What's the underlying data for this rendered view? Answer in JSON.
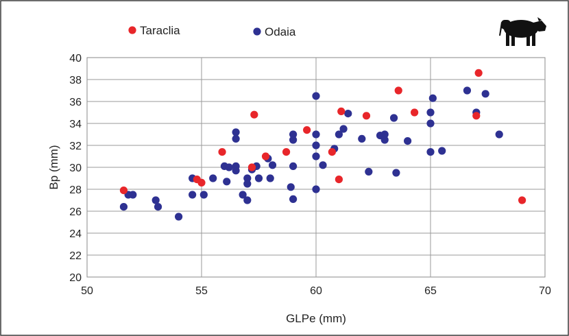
{
  "chart_data": {
    "type": "scatter",
    "xlabel": "GLPe (mm)",
    "ylabel": "Bp (mm)",
    "xlim": [
      50,
      70
    ],
    "ylim": [
      20,
      40
    ],
    "x_ticks": [
      "50",
      "55",
      "60",
      "65",
      "70"
    ],
    "y_ticks": [
      "20",
      "22",
      "24",
      "26",
      "28",
      "30",
      "32",
      "34",
      "36",
      "38",
      "40"
    ],
    "grid": true,
    "legend_position": "top-left",
    "icon": "cow-silhouette-icon",
    "series": [
      {
        "name": "Taraclia",
        "color": "#e8262a",
        "points": [
          [
            51.6,
            27.9
          ],
          [
            54.8,
            28.9
          ],
          [
            55.0,
            28.6
          ],
          [
            55.9,
            31.4
          ],
          [
            57.2,
            30.0
          ],
          [
            57.3,
            34.8
          ],
          [
            57.8,
            31.0
          ],
          [
            58.7,
            31.4
          ],
          [
            59.6,
            33.4
          ],
          [
            60.7,
            31.4
          ],
          [
            61.0,
            28.9
          ],
          [
            61.1,
            35.1
          ],
          [
            62.2,
            34.7
          ],
          [
            63.6,
            37.0
          ],
          [
            64.3,
            35.0
          ],
          [
            67.0,
            34.7
          ],
          [
            67.1,
            38.6
          ],
          [
            69.0,
            27.0
          ]
        ]
      },
      {
        "name": "Odaia",
        "color": "#2e3192",
        "points": [
          [
            51.6,
            26.4
          ],
          [
            51.8,
            27.5
          ],
          [
            52.0,
            27.5
          ],
          [
            53.0,
            27.0
          ],
          [
            53.1,
            26.4
          ],
          [
            54.0,
            25.5
          ],
          [
            54.6,
            29.0
          ],
          [
            54.6,
            27.5
          ],
          [
            55.1,
            27.5
          ],
          [
            55.5,
            29.0
          ],
          [
            56.0,
            30.1
          ],
          [
            56.1,
            28.7
          ],
          [
            56.2,
            30.0
          ],
          [
            56.5,
            33.2
          ],
          [
            56.5,
            32.6
          ],
          [
            56.5,
            29.7
          ],
          [
            56.5,
            30.1
          ],
          [
            56.8,
            27.5
          ],
          [
            57.0,
            29.0
          ],
          [
            57.0,
            28.5
          ],
          [
            57.0,
            27.0
          ],
          [
            57.2,
            29.8
          ],
          [
            57.4,
            30.1
          ],
          [
            57.5,
            29.0
          ],
          [
            57.9,
            30.8
          ],
          [
            58.0,
            29.0
          ],
          [
            58.1,
            30.2
          ],
          [
            58.9,
            28.2
          ],
          [
            59.0,
            30.1
          ],
          [
            59.0,
            27.1
          ],
          [
            59.0,
            32.5
          ],
          [
            59.0,
            33.0
          ],
          [
            60.0,
            36.5
          ],
          [
            60.0,
            33.0
          ],
          [
            60.0,
            32.0
          ],
          [
            60.0,
            31.0
          ],
          [
            60.0,
            28.0
          ],
          [
            60.3,
            30.2
          ],
          [
            60.8,
            31.7
          ],
          [
            61.0,
            33.0
          ],
          [
            61.2,
            33.5
          ],
          [
            61.4,
            34.9
          ],
          [
            62.0,
            32.6
          ],
          [
            62.3,
            29.6
          ],
          [
            62.8,
            32.9
          ],
          [
            63.0,
            33.0
          ],
          [
            63.0,
            32.5
          ],
          [
            63.4,
            34.5
          ],
          [
            63.5,
            29.5
          ],
          [
            64.0,
            32.4
          ],
          [
            65.0,
            35.0
          ],
          [
            65.0,
            34.0
          ],
          [
            65.0,
            31.4
          ],
          [
            65.1,
            36.3
          ],
          [
            65.5,
            31.5
          ],
          [
            66.6,
            37.0
          ],
          [
            67.0,
            35.0
          ],
          [
            67.4,
            36.7
          ],
          [
            68.0,
            33.0
          ]
        ]
      }
    ]
  }
}
